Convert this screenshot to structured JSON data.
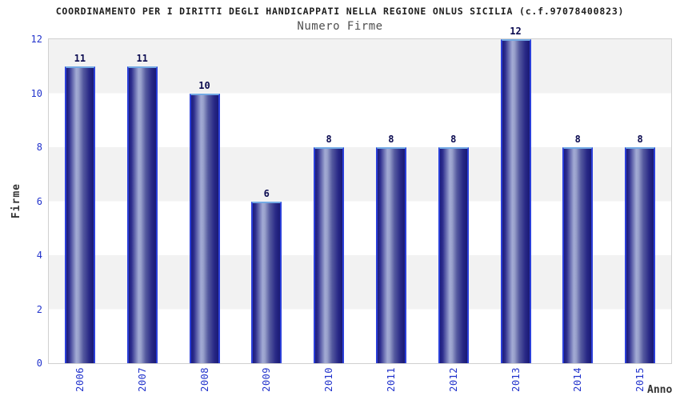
{
  "chart_data": {
    "type": "bar",
    "title": "COORDINAMENTO PER I DIRITTI DEGLI HANDICAPPATI NELLA REGIONE ONLUS SICILIA (c.f.97078400823)",
    "subtitle": "Numero Firme",
    "xlabel": "Anno",
    "ylabel": "Firme",
    "categories": [
      "2006",
      "2007",
      "2008",
      "2009",
      "2010",
      "2011",
      "2012",
      "2013",
      "2014",
      "2015"
    ],
    "values": [
      11,
      11,
      10,
      6,
      8,
      8,
      8,
      12,
      8,
      8
    ],
    "ylim": [
      0,
      12
    ],
    "yticks": [
      0,
      2,
      4,
      6,
      8,
      10,
      12
    ],
    "grid": "alternating horizontal bands every 2 units (white / light gray)",
    "legend": "none",
    "colors": {
      "title": "#1c1c1c",
      "subtitle": "#4f4f4f",
      "tick_label": "#2233cc",
      "value_label": "#0a0a50",
      "axis_title": "#333333",
      "band_gray": "#f2f2f2",
      "band_white": "#ffffff",
      "plot_border": "#d0d0d0",
      "bar_dark": "#1c1c7c",
      "bar_highlight": "#a2aad4",
      "bar_outline_top": "#74aae4",
      "bar_outline_side": "#2b3fd9"
    }
  }
}
